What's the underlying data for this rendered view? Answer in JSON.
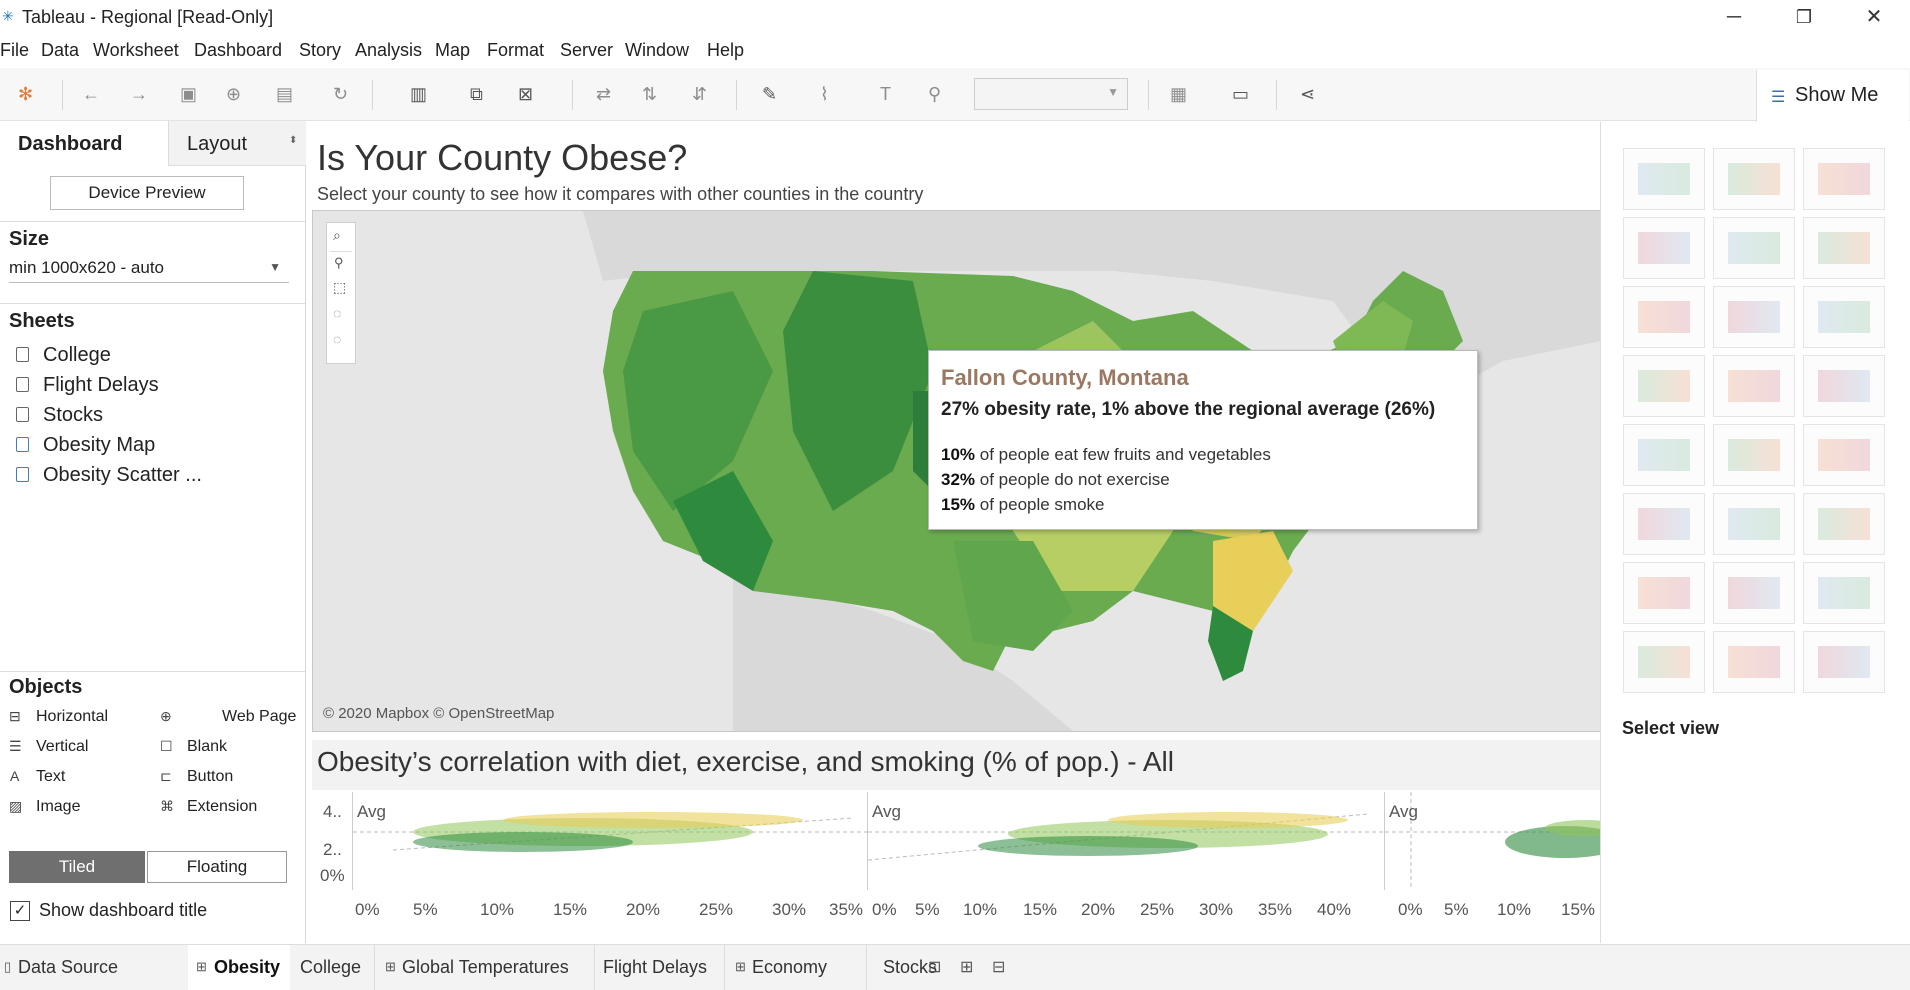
{
  "window": {
    "title": "Tableau - Regional [Read-Only]",
    "minimize_glyph": "─",
    "restore_glyph": "❐",
    "close_glyph": "✕"
  },
  "menu": [
    "File",
    "Data",
    "Worksheet",
    "Dashboard",
    "Story",
    "Analysis",
    "Map",
    "Format",
    "Server",
    "Window",
    "Help"
  ],
  "toolbar": {
    "show_me_label": "Show Me",
    "icons": [
      "tableau-logo-icon",
      "undo-icon",
      "redo-icon",
      "save-icon",
      "new-datasource-icon",
      "pause-update-icon",
      "refresh-icon",
      "new-worksheet-icon",
      "duplicate-icon",
      "clear-icon",
      "swap-icon",
      "sort-asc-icon",
      "sort-desc-icon",
      "highlight-icon",
      "group-icon",
      "label-icon",
      "pin-icon",
      "fit-dropdown",
      "show-cards-icon",
      "presentation-icon",
      "share-icon"
    ]
  },
  "left_panel": {
    "tab_dashboard": "Dashboard",
    "tab_layout": "Layout",
    "device_preview": "Device Preview",
    "size_heading": "Size",
    "size_value": "min 1000x620 - auto",
    "sheets_heading": "Sheets",
    "sheets": [
      "College",
      "Flight Delays",
      "Stocks",
      "Obesity Map",
      "Obesity Scatter ..."
    ],
    "objects_heading": "Objects",
    "objects_left": [
      "Horizontal",
      "Vertical",
      "Text",
      "Image"
    ],
    "objects_right": [
      "Web Page",
      "Blank",
      "Button",
      "Extension"
    ],
    "tiled": "Tiled",
    "floating": "Floating",
    "show_title": "Show dashboard title",
    "show_title_checked": true
  },
  "dashboard": {
    "title": "Is Your County Obese?",
    "subtitle": "Select your county to see how it compares with other counties in the country",
    "map_copyright": "© 2020 Mapbox © OpenStreetMap",
    "tooltip": {
      "county": "Fallon County, Montana",
      "rate_line": "27% obesity rate, 1% above the regional average (26%)",
      "lines": [
        {
          "pct": "10%",
          "text": " of people eat few fruits and vegetables"
        },
        {
          "pct": "32%",
          "text": " of people do not exercise"
        },
        {
          "pct": "15%",
          "text": " of people smoke"
        }
      ]
    },
    "scatter_title": "Obesity’s correlation with diet, exercise, and smoking (% of pop.) - All",
    "y_ticks": [
      "4..",
      "2..",
      "0%"
    ],
    "avg_label": "Avg",
    "panel1_x": [
      "0%",
      "5%",
      "10%",
      "15%",
      "20%",
      "25%",
      "30%",
      "35%"
    ],
    "panel2_x": [
      "0%",
      "5%",
      "10%",
      "15%",
      "20%",
      "25%",
      "30%",
      "35%",
      "40%"
    ],
    "panel3_x": [
      "0%",
      "5%",
      "10%",
      "15%"
    ]
  },
  "show_me": {
    "select_view": "Select view",
    "tiles": [
      "text-table",
      "heat-map",
      "highlight-table",
      "symbol-map",
      "filled-map",
      "pie-chart",
      "horizontal-bars",
      "stacked-bars",
      "side-by-side-bars",
      "treemap",
      "circle-views",
      "side-by-side-circles",
      "continuous-lines",
      "discrete-lines",
      "dual-lines",
      "area-continuous",
      "area-discrete",
      "dual-combination",
      "scatter-plot",
      "histogram",
      "box-whisker",
      "gantt",
      "bullet-graph",
      "packed-bubbles"
    ]
  },
  "bottom_tabs": {
    "data_source": "Data Source",
    "tabs": [
      "Obesity",
      "College",
      "Global Temperatures",
      "Flight Delays",
      "Economy",
      "Stocks"
    ],
    "active": "Obesity"
  },
  "colors": {
    "map_dark_green": "#2e8b3e",
    "map_green": "#6aab4f",
    "map_light_green": "#9cc45f",
    "map_yellow": "#e8cf5a",
    "tooltip_title": "#9b7862"
  }
}
